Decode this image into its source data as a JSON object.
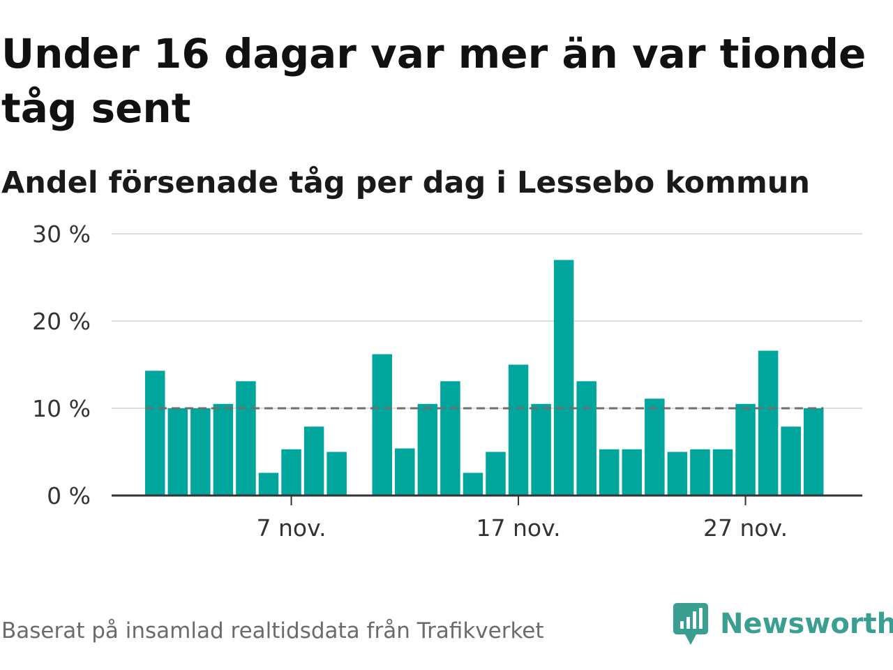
{
  "title": "Under 16 dagar var mer än var tionde tåg sent",
  "subtitle": "Andel försenade tåg per dag i Lessebo kommun",
  "footer": "Baserat på insamlad realtidsdata från Trafikverket",
  "brand": {
    "name": "Newsworthy",
    "icon": "newsworthy-logo-icon",
    "color": "#3a9f91"
  },
  "colors": {
    "bar": "#00a69c",
    "reference_line": "#6e6e6e",
    "grid": "#dddddd",
    "axis": "#333333"
  },
  "chart_data": {
    "type": "bar",
    "x": [
      "1 nov.",
      "2 nov.",
      "3 nov.",
      "4 nov.",
      "5 nov.",
      "6 nov.",
      "7 nov.",
      "8 nov.",
      "9 nov.",
      "10 nov.",
      "11 nov.",
      "12 nov.",
      "13 nov.",
      "14 nov.",
      "15 nov.",
      "16 nov.",
      "17 nov.",
      "18 nov.",
      "19 nov.",
      "20 nov.",
      "21 nov.",
      "22 nov.",
      "23 nov.",
      "24 nov.",
      "25 nov.",
      "26 nov.",
      "27 nov.",
      "28 nov.",
      "29 nov.",
      "30 nov."
    ],
    "values": [
      14.3,
      10.0,
      10.0,
      10.5,
      13.1,
      2.6,
      5.3,
      7.9,
      5.0,
      null,
      16.2,
      5.4,
      10.5,
      13.1,
      2.6,
      5.0,
      15.0,
      10.5,
      27.0,
      13.1,
      5.3,
      5.3,
      11.1,
      5.0,
      5.3,
      5.3,
      10.5,
      16.6,
      7.9,
      10.0
    ],
    "reference_value": 10,
    "ylim": [
      0,
      30
    ],
    "y_ticks": [
      0,
      10,
      20,
      30
    ],
    "y_tick_labels": [
      "0 %",
      "10 %",
      "20 %",
      "30 %"
    ],
    "x_tick_labels": [
      {
        "index": 6,
        "label": "7 nov."
      },
      {
        "index": 16,
        "label": "17 nov."
      },
      {
        "index": 26,
        "label": "27 nov."
      }
    ],
    "grid": true,
    "legend": "none"
  }
}
